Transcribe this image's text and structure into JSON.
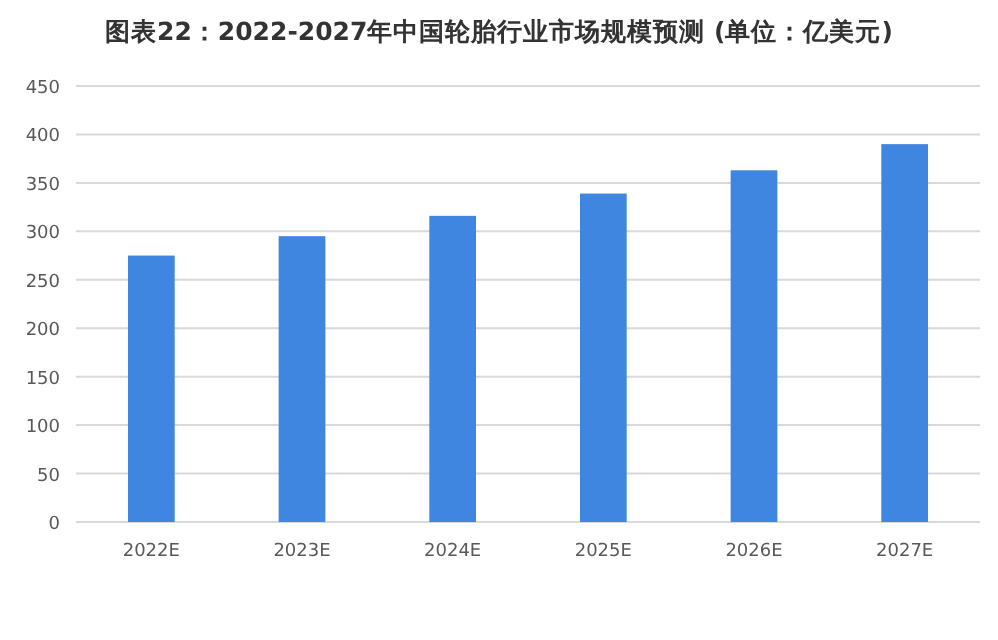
{
  "chart_data": {
    "type": "bar",
    "title": "图表22：2022-2027年中国轮胎行业市场规模预测 (单位：亿美元)",
    "categories": [
      "2022E",
      "2023E",
      "2024E",
      "2025E",
      "2026E",
      "2027E"
    ],
    "values": [
      275,
      295,
      316,
      339,
      363,
      390
    ],
    "color": "#3f86e0",
    "ylim": [
      0,
      450
    ],
    "yticks": [
      0,
      50,
      100,
      150,
      200,
      250,
      300,
      350,
      400,
      450
    ],
    "grid": "y"
  }
}
